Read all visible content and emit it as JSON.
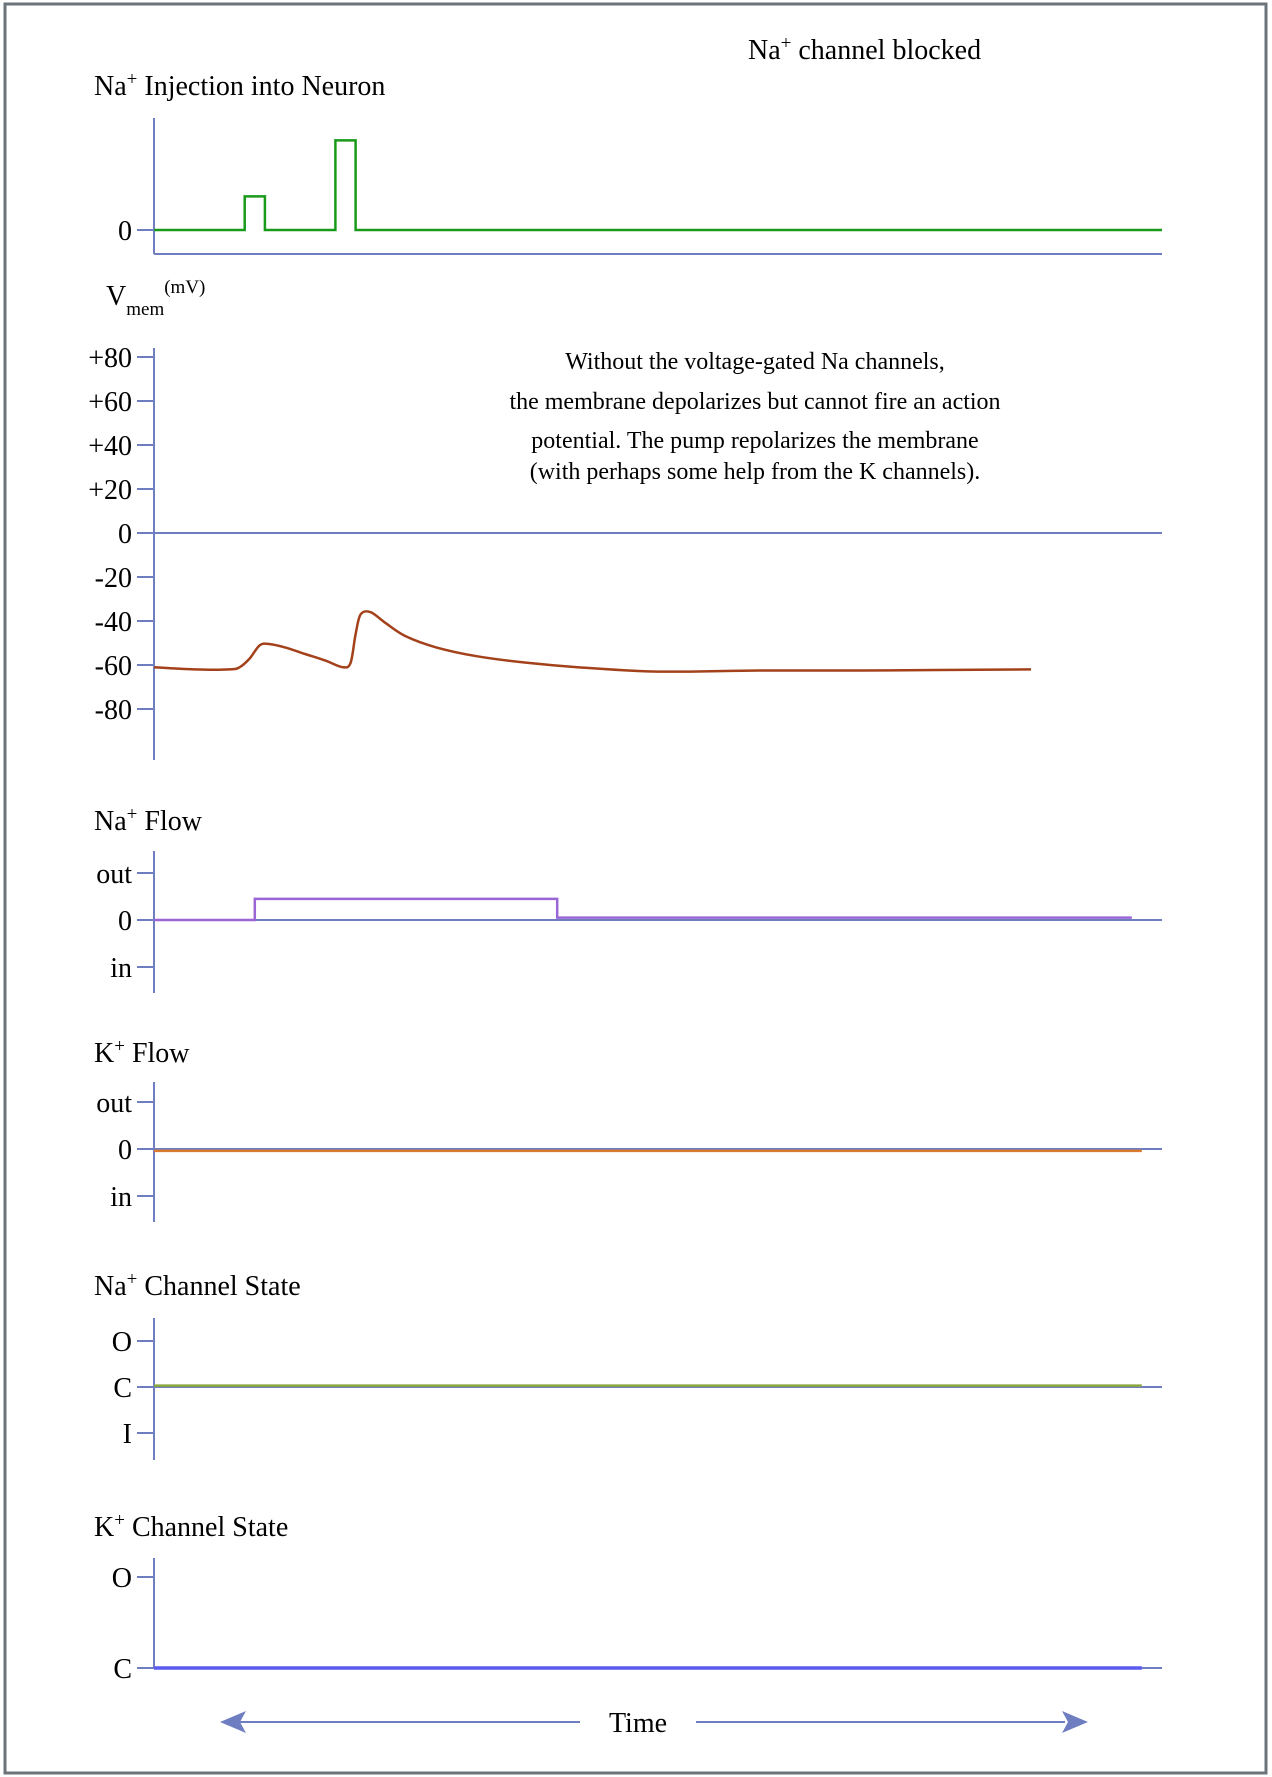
{
  "colors": {
    "frame": "#6b737b",
    "axis": "#6f7ec1",
    "injection": "#1a9a1a",
    "vmem": "#a3411b",
    "na_flow": "#9a66d6",
    "k_flow": "#d97a2e",
    "na_state": "#8aa83e",
    "k_state": "#5a5af0",
    "arrow": "#6f7ec1"
  },
  "header": {
    "condition_base": "Na",
    "condition_sup": "+",
    "condition_rest": " channel blocked"
  },
  "annotation": {
    "line1": "Without the voltage-gated Na channels,",
    "line2": "the membrane depolarizes but cannot fire an action",
    "line3": "potential. The pump repolarizes the membrane",
    "line4": "(with perhaps some help from the K channels)."
  },
  "time_label": "Time",
  "chart_data": [
    {
      "type": "line",
      "title_base": "Na",
      "title_sup": "+",
      "title_rest": " Injection into Neuron",
      "ytick_labels": [
        "0"
      ],
      "x_domain": [
        0,
        100
      ],
      "y_domain": [
        0,
        2
      ],
      "series": [
        {
          "x": [
            0,
            9,
            9,
            11,
            11,
            18,
            18,
            20,
            20,
            100
          ],
          "y": [
            0,
            0,
            0.6,
            0.6,
            0,
            0,
            1.6,
            1.6,
            0,
            0
          ]
        }
      ]
    },
    {
      "type": "line",
      "ylabel_base": "V",
      "ylabel_sub": "mem",
      "ylabel_sup": "(mV)",
      "ytick_labels": [
        "+80",
        "+60",
        "+40",
        "+20",
        "0",
        "-20",
        "-40",
        "-60",
        "-80"
      ],
      "ytick_values": [
        80,
        60,
        40,
        20,
        0,
        -20,
        -40,
        -60,
        -80
      ],
      "ylim": [
        -100,
        80
      ],
      "series": [
        {
          "name": "",
          "x": [
            0,
            4,
            7.5,
            8.5,
            9.5,
            10.5,
            11.5,
            13,
            15,
            17,
            18.7,
            19.5,
            20,
            20.5,
            21.5,
            23,
            25,
            28,
            32,
            37,
            42,
            50,
            60,
            70,
            87
          ],
          "y": [
            -61,
            -62,
            -62,
            -61,
            -57,
            -51,
            -50.5,
            -52,
            -55,
            -58,
            -61,
            -59,
            -46,
            -37,
            -36,
            -41,
            -47,
            -52,
            -56,
            -59,
            -61,
            -63,
            -62.5,
            -62.5,
            -62
          ]
        }
      ]
    },
    {
      "type": "line",
      "title_base": "Na",
      "title_sup": "+",
      "title_rest": " Flow",
      "ytick_labels": [
        "out",
        "0",
        "in"
      ],
      "ytick_values": [
        1,
        0,
        -1
      ],
      "series": [
        {
          "x": [
            0,
            10,
            10,
            40,
            40,
            97
          ],
          "y": [
            0,
            0,
            0.45,
            0.45,
            0.05,
            0.05
          ]
        }
      ]
    },
    {
      "type": "line",
      "title_base": "K",
      "title_sup": "+",
      "title_rest": " Flow",
      "ytick_labels": [
        "out",
        "0",
        "in"
      ],
      "ytick_values": [
        1,
        0,
        -1
      ],
      "series": [
        {
          "x": [
            0,
            98
          ],
          "y": [
            -0.04,
            -0.04
          ]
        }
      ]
    },
    {
      "type": "line",
      "title_base": "Na",
      "title_sup": "+",
      "title_rest": " Channel State",
      "ytick_labels": [
        "O",
        "C",
        "I"
      ],
      "ytick_values": [
        1,
        0,
        -1
      ],
      "series": [
        {
          "x": [
            0,
            98
          ],
          "y": [
            0.03,
            0.03
          ]
        }
      ]
    },
    {
      "type": "line",
      "title_base": "K",
      "title_sup": "+",
      "title_rest": " Channel State",
      "ytick_labels": [
        "O",
        "C"
      ],
      "ytick_values": [
        1,
        0
      ],
      "series": [
        {
          "x": [
            0,
            98
          ],
          "y": [
            0,
            0
          ]
        }
      ]
    }
  ]
}
